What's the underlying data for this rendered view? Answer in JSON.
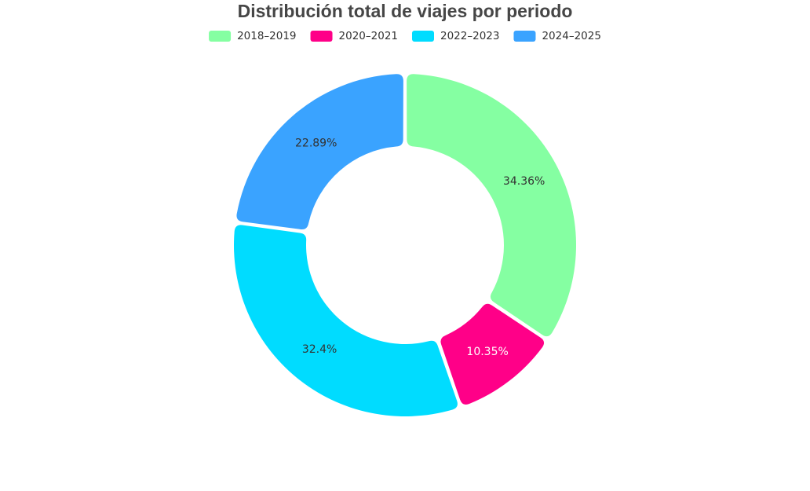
{
  "chart_data": {
    "type": "pie",
    "variant": "donut",
    "title": "Distribución total de viajes por periodo",
    "legend_position": "top",
    "slices": [
      {
        "label": "2018–2019",
        "value": 34.36,
        "display": "34.36%",
        "color": "#85ffa2",
        "label_color": "#333333"
      },
      {
        "label": "2020–2021",
        "value": 10.35,
        "display": "10.35%",
        "color": "#ff0088",
        "label_color": "#ffffff"
      },
      {
        "label": "2022–2023",
        "value": 32.4,
        "display": "32.4%",
        "color": "#00dcff",
        "label_color": "#333333"
      },
      {
        "label": "2024–2025",
        "value": 22.89,
        "display": "22.89%",
        "color": "#3aa3ff",
        "label_color": "#333333"
      }
    ]
  }
}
